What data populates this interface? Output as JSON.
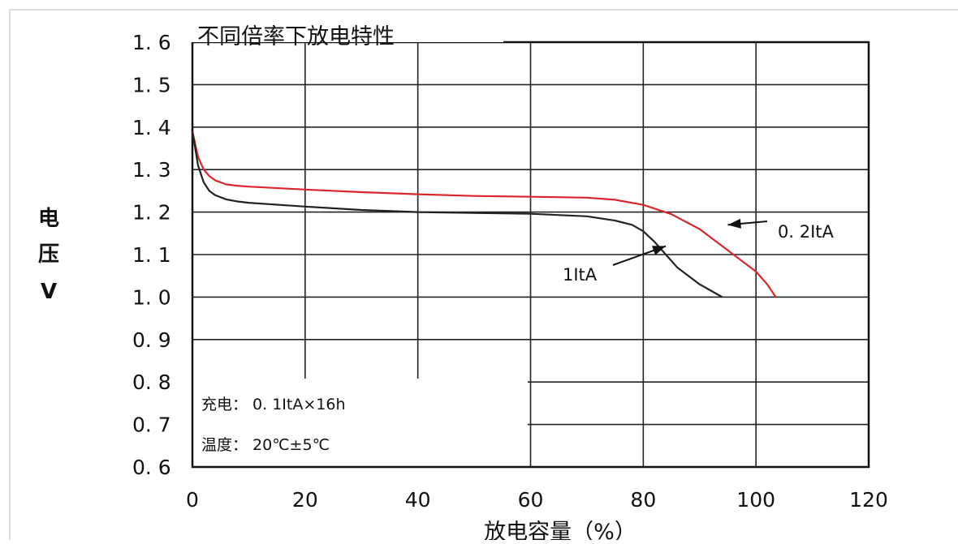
{
  "chart_data": {
    "type": "line",
    "title": "不同倍率下放电特性",
    "xlabel": "放电容量（%）",
    "ylabel": [
      "电",
      "压",
      "V"
    ],
    "xlim": [
      0,
      120
    ],
    "ylim": [
      0.6,
      1.6
    ],
    "x_ticks": [
      "0",
      "20",
      "40",
      "60",
      "80",
      "100",
      "120"
    ],
    "y_ticks": [
      "1. 6",
      "1. 5",
      "1. 4",
      "1. 3",
      "1. 2",
      "1. 1",
      "1. 0",
      "0. 9",
      "0. 8",
      "0. 7",
      "0. 6"
    ],
    "grid": true,
    "series": [
      {
        "name": "0. 2ItA",
        "color": "#d9262b",
        "x": [
          0,
          0.5,
          1,
          2,
          3,
          4,
          6,
          8,
          10,
          20,
          30,
          40,
          50,
          60,
          70,
          75,
          80,
          85,
          90,
          93,
          96,
          98,
          100,
          102,
          103.5
        ],
        "y": [
          1.39,
          1.36,
          1.33,
          1.3,
          1.285,
          1.275,
          1.265,
          1.262,
          1.26,
          1.253,
          1.247,
          1.242,
          1.238,
          1.236,
          1.234,
          1.229,
          1.217,
          1.195,
          1.16,
          1.13,
          1.1,
          1.08,
          1.06,
          1.03,
          1.0
        ]
      },
      {
        "name": "1ItA",
        "color": "#222222",
        "x": [
          0,
          0.5,
          1,
          2,
          3,
          4,
          6,
          8,
          10,
          20,
          30,
          40,
          50,
          60,
          70,
          75,
          78,
          80,
          82,
          84,
          86,
          88,
          90,
          92,
          94
        ],
        "y": [
          1.39,
          1.35,
          1.31,
          1.27,
          1.25,
          1.24,
          1.23,
          1.225,
          1.222,
          1.213,
          1.205,
          1.2,
          1.198,
          1.196,
          1.19,
          1.18,
          1.17,
          1.155,
          1.13,
          1.1,
          1.07,
          1.05,
          1.03,
          1.015,
          1.0
        ]
      }
    ],
    "annotations": [
      {
        "text": "0. 2ItA",
        "target": [
          95,
          1.17
        ]
      },
      {
        "text": "1ItA",
        "target": [
          84,
          1.12
        ]
      }
    ],
    "notes": [
      "充电： 0. 1ItA×16h",
      "温度： 20℃±5℃"
    ]
  }
}
